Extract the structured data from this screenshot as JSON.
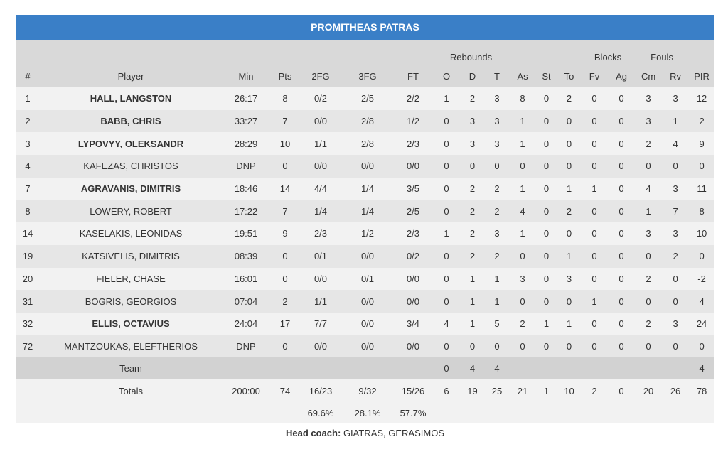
{
  "team_name": "PROMITHEAS PATRAS",
  "group_headers": {
    "rebounds": "Rebounds",
    "blocks": "Blocks",
    "fouls": "Fouls"
  },
  "columns": [
    "#",
    "Player",
    "Min",
    "Pts",
    "2FG",
    "3FG",
    "FT",
    "O",
    "D",
    "T",
    "As",
    "St",
    "To",
    "Fv",
    "Ag",
    "Cm",
    "Rv",
    "PIR"
  ],
  "players": [
    {
      "num": "1",
      "name": "HALL, LANGSTON",
      "starter": true,
      "min": "26:17",
      "pts": "8",
      "fg2": "0/2",
      "fg3": "2/5",
      "ft": "2/2",
      "o": "1",
      "d": "2",
      "t": "3",
      "as": "8",
      "st": "0",
      "to": "2",
      "fv": "0",
      "ag": "0",
      "cm": "3",
      "rv": "3",
      "pir": "12"
    },
    {
      "num": "2",
      "name": "BABB, CHRIS",
      "starter": true,
      "min": "33:27",
      "pts": "7",
      "fg2": "0/0",
      "fg3": "2/8",
      "ft": "1/2",
      "o": "0",
      "d": "3",
      "t": "3",
      "as": "1",
      "st": "0",
      "to": "0",
      "fv": "0",
      "ag": "0",
      "cm": "3",
      "rv": "1",
      "pir": "2"
    },
    {
      "num": "3",
      "name": "LYPOVYY, OLEKSANDR",
      "starter": true,
      "min": "28:29",
      "pts": "10",
      "fg2": "1/1",
      "fg3": "2/8",
      "ft": "2/3",
      "o": "0",
      "d": "3",
      "t": "3",
      "as": "1",
      "st": "0",
      "to": "0",
      "fv": "0",
      "ag": "0",
      "cm": "2",
      "rv": "4",
      "pir": "9"
    },
    {
      "num": "4",
      "name": "KAFEZAS, CHRISTOS",
      "starter": false,
      "min": "DNP",
      "pts": "0",
      "fg2": "0/0",
      "fg3": "0/0",
      "ft": "0/0",
      "o": "0",
      "d": "0",
      "t": "0",
      "as": "0",
      "st": "0",
      "to": "0",
      "fv": "0",
      "ag": "0",
      "cm": "0",
      "rv": "0",
      "pir": "0"
    },
    {
      "num": "7",
      "name": "AGRAVANIS, DIMITRIS",
      "starter": true,
      "min": "18:46",
      "pts": "14",
      "fg2": "4/4",
      "fg3": "1/4",
      "ft": "3/5",
      "o": "0",
      "d": "2",
      "t": "2",
      "as": "1",
      "st": "0",
      "to": "1",
      "fv": "1",
      "ag": "0",
      "cm": "4",
      "rv": "3",
      "pir": "11"
    },
    {
      "num": "8",
      "name": "LOWERY, ROBERT",
      "starter": false,
      "min": "17:22",
      "pts": "7",
      "fg2": "1/4",
      "fg3": "1/4",
      "ft": "2/5",
      "o": "0",
      "d": "2",
      "t": "2",
      "as": "4",
      "st": "0",
      "to": "2",
      "fv": "0",
      "ag": "0",
      "cm": "1",
      "rv": "7",
      "pir": "8"
    },
    {
      "num": "14",
      "name": "KASELAKIS, LEONIDAS",
      "starter": false,
      "min": "19:51",
      "pts": "9",
      "fg2": "2/3",
      "fg3": "1/2",
      "ft": "2/3",
      "o": "1",
      "d": "2",
      "t": "3",
      "as": "1",
      "st": "0",
      "to": "0",
      "fv": "0",
      "ag": "0",
      "cm": "3",
      "rv": "3",
      "pir": "10"
    },
    {
      "num": "19",
      "name": "KATSIVELIS, DIMITRIS",
      "starter": false,
      "min": "08:39",
      "pts": "0",
      "fg2": "0/1",
      "fg3": "0/0",
      "ft": "0/2",
      "o": "0",
      "d": "2",
      "t": "2",
      "as": "0",
      "st": "0",
      "to": "1",
      "fv": "0",
      "ag": "0",
      "cm": "0",
      "rv": "2",
      "pir": "0"
    },
    {
      "num": "20",
      "name": "FIELER, CHASE",
      "starter": false,
      "min": "16:01",
      "pts": "0",
      "fg2": "0/0",
      "fg3": "0/1",
      "ft": "0/0",
      "o": "0",
      "d": "1",
      "t": "1",
      "as": "3",
      "st": "0",
      "to": "3",
      "fv": "0",
      "ag": "0",
      "cm": "2",
      "rv": "0",
      "pir": "-2"
    },
    {
      "num": "31",
      "name": "BOGRIS, GEORGIOS",
      "starter": false,
      "min": "07:04",
      "pts": "2",
      "fg2": "1/1",
      "fg3": "0/0",
      "ft": "0/0",
      "o": "0",
      "d": "1",
      "t": "1",
      "as": "0",
      "st": "0",
      "to": "0",
      "fv": "1",
      "ag": "0",
      "cm": "0",
      "rv": "0",
      "pir": "4"
    },
    {
      "num": "32",
      "name": "ELLIS, OCTAVIUS",
      "starter": true,
      "min": "24:04",
      "pts": "17",
      "fg2": "7/7",
      "fg3": "0/0",
      "ft": "3/4",
      "o": "4",
      "d": "1",
      "t": "5",
      "as": "2",
      "st": "1",
      "to": "1",
      "fv": "0",
      "ag": "0",
      "cm": "2",
      "rv": "3",
      "pir": "24"
    },
    {
      "num": "72",
      "name": "MANTZOUKAS, ELEFTHERIOS",
      "starter": false,
      "min": "DNP",
      "pts": "0",
      "fg2": "0/0",
      "fg3": "0/0",
      "ft": "0/0",
      "o": "0",
      "d": "0",
      "t": "0",
      "as": "0",
      "st": "0",
      "to": "0",
      "fv": "0",
      "ag": "0",
      "cm": "0",
      "rv": "0",
      "pir": "0"
    }
  ],
  "team_row": {
    "label": "Team",
    "o": "0",
    "d": "4",
    "t": "4",
    "pir": "4"
  },
  "totals": {
    "label": "Totals",
    "min": "200:00",
    "pts": "74",
    "fg2": "16/23",
    "fg3": "9/32",
    "ft": "15/26",
    "o": "6",
    "d": "19",
    "t": "25",
    "as": "21",
    "st": "1",
    "to": "10",
    "fv": "2",
    "ag": "0",
    "cm": "20",
    "rv": "26",
    "pir": "78"
  },
  "percentages": {
    "fg2": "69.6%",
    "fg3": "28.1%",
    "ft": "57.7%"
  },
  "coach": {
    "label": "Head coach:",
    "name": "GIATRAS, GERASIMOS"
  }
}
